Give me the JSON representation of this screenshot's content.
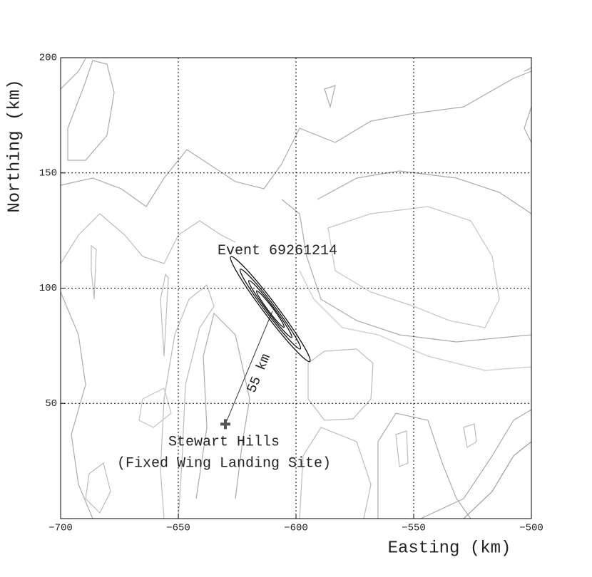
{
  "chart_data": {
    "type": "scatter",
    "x_label": "Easting (km)",
    "y_label": "Northing (km)",
    "xlim": [
      -700,
      -500
    ],
    "xticks": [
      {
        "value": -700,
        "label": "−700"
      },
      {
        "value": -650,
        "label": "−650"
      },
      {
        "value": -600,
        "label": "−600"
      },
      {
        "value": -550,
        "label": "−550"
      },
      {
        "value": -500,
        "label": "−500"
      }
    ],
    "ylim": [
      0,
      200
    ],
    "yticks": [
      50,
      100,
      150,
      200
    ],
    "grid": true,
    "event": {
      "label": "Event 69261214",
      "x": -610,
      "y": 90,
      "color": "#111111"
    },
    "site": {
      "label": "Stewart Hills",
      "sublabel": "(Fixed Wing Landing Site)",
      "x": -630,
      "y": 41,
      "color": "#555555"
    },
    "distance_label": "55 km"
  }
}
